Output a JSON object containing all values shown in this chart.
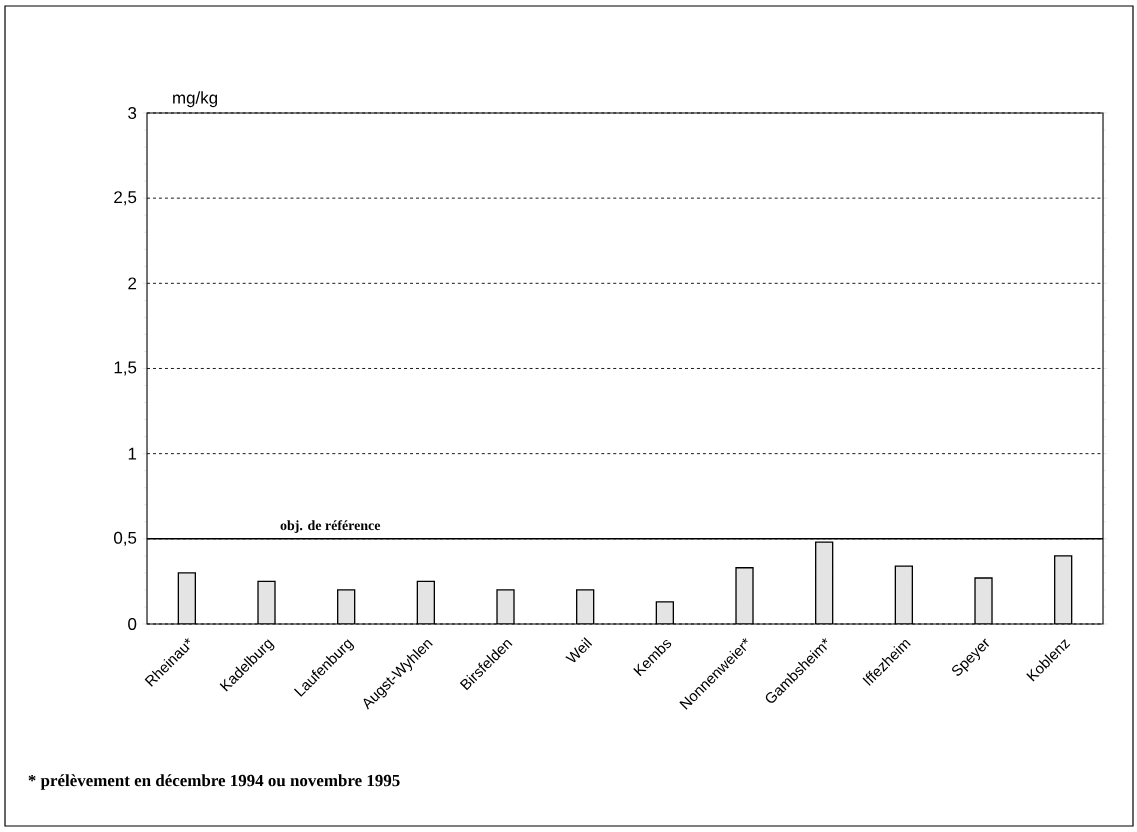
{
  "chart_data": {
    "type": "bar",
    "ylabel": "mg/kg",
    "categories": [
      "Rheinau*",
      "Kadelburg",
      "Laufenburg",
      "Augst-Wyhlen",
      "Birsfelden",
      "Weil",
      "Kembs",
      "Nonnenweier*",
      "Gambsheim*",
      "Iffezheim",
      "Speyer",
      "Koblenz"
    ],
    "values": [
      0.3,
      0.25,
      0.2,
      0.25,
      0.2,
      0.2,
      0.13,
      0.33,
      0.48,
      0.34,
      0.27,
      0.4
    ],
    "color": "#e4e4e4",
    "ylim": [
      0,
      3
    ],
    "yticks": [
      0,
      {
        "value": 0.5,
        "label": "0,5"
      },
      1,
      {
        "value": 1.5,
        "label": "1,5"
      },
      2,
      {
        "value": 2.5,
        "label": "2,5"
      },
      3
    ],
    "grid": "y",
    "ref_lines": [
      {
        "axis": "y",
        "value": 0.5,
        "label": "obj. de référence",
        "line_style": "solid"
      }
    ],
    "annotations": [
      "* prélèvement en décembre 1994 ou novembre 1995"
    ]
  }
}
